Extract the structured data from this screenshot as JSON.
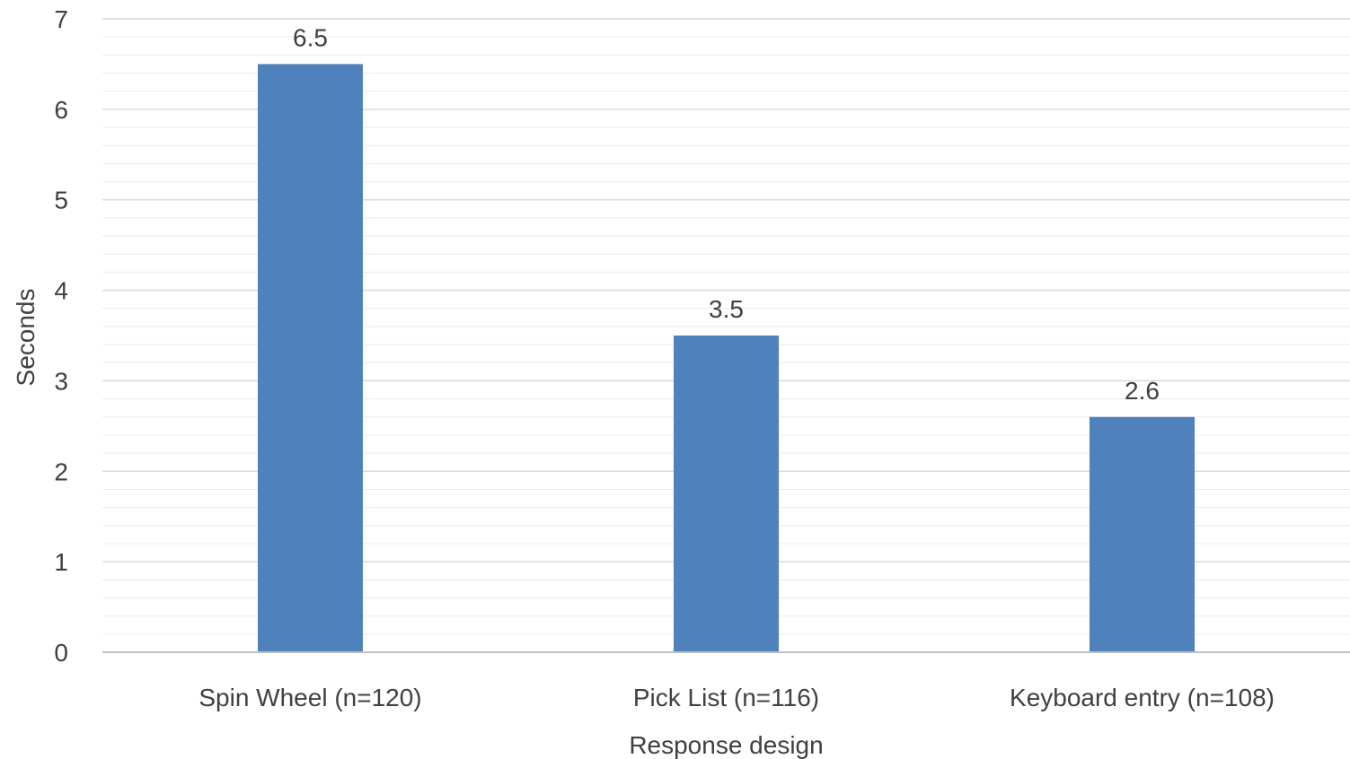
{
  "chart_data": {
    "type": "bar",
    "title": "",
    "xlabel": "Response design",
    "ylabel": "Seconds",
    "categories": [
      "Spin Wheel (n=120)",
      "Pick List (n=116)",
      "Keyboard entry (n=108)"
    ],
    "values": [
      6.5,
      3.5,
      2.6
    ],
    "data_labels": [
      "6.5",
      "3.5",
      "2.6"
    ],
    "ylim": [
      0,
      7
    ],
    "yticks": [
      0,
      1,
      2,
      3,
      4,
      5,
      6,
      7
    ],
    "minor_gridlines_per_major": 5,
    "grid": true,
    "legend": "none",
    "bar_color": "#4f81bd"
  }
}
